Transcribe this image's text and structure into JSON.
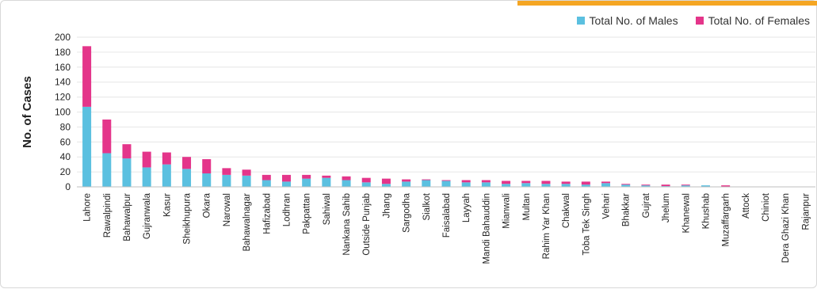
{
  "colors": {
    "males": "#5BC0E0",
    "females": "#E4358A",
    "accent": "#F5A623",
    "grid": "#e6e6e6",
    "axis": "#bfbfbf"
  },
  "chart_data": {
    "type": "bar",
    "stacked": true,
    "ylabel": "No. of Cases",
    "xlabel": "",
    "ylim": [
      0,
      200
    ],
    "yticks": [
      0,
      20,
      40,
      60,
      80,
      100,
      120,
      140,
      160,
      180,
      200
    ],
    "grid": true,
    "legend_position": "top-right",
    "categories": [
      "Lahore",
      "Rawalpindi",
      "Bahawalpur",
      "Gujranwala",
      "Kasur",
      "Sheikhupura",
      "Okara",
      "Narowal",
      "Bahawalnagar",
      "Hafizabad",
      "Lodhran",
      "Pakpattan",
      "Sahiwal",
      "Nankana Sahib",
      "Outside Punjab",
      "Jhang",
      "Sargodha",
      "Sialkot",
      "Faisalabad",
      "Layyah",
      "Mandi Bahauddin",
      "Mianwali",
      "Multan",
      "Rahim Yar Khan",
      "Chakwal",
      "Toba Tek Singh",
      "Vehari",
      "Bhakkar",
      "Gujrat",
      "Jhelum",
      "Khanewal",
      "Khushab",
      "Muzaffargarh",
      "Attock",
      "Chiniot",
      "Dera Ghazi Khan",
      "Rajanpur"
    ],
    "series": [
      {
        "name": "Total No. of Males",
        "values": [
          107,
          45,
          38,
          26,
          30,
          24,
          18,
          16,
          15,
          9,
          7,
          11,
          12,
          9,
          6,
          4,
          7,
          9,
          8,
          6,
          6,
          4,
          5,
          4,
          4,
          3,
          5,
          3,
          2,
          1,
          2,
          2,
          0,
          0,
          0,
          0,
          0
        ]
      },
      {
        "name": "Total No. of Females",
        "values": [
          81,
          45,
          19,
          21,
          16,
          16,
          19,
          9,
          8,
          7,
          9,
          5,
          3,
          5,
          6,
          7,
          3,
          1,
          1,
          3,
          3,
          4,
          3,
          4,
          3,
          4,
          2,
          1,
          1,
          2,
          1,
          0,
          2,
          0,
          0,
          0,
          0
        ]
      }
    ]
  }
}
